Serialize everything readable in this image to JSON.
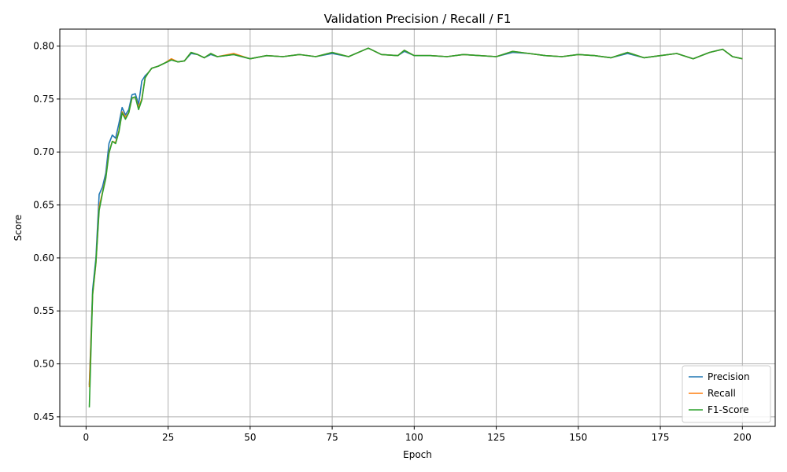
{
  "chart_data": {
    "type": "line",
    "title": "Validation Precision / Recall / F1",
    "xlabel": "Epoch",
    "ylabel": "Score",
    "xlim": [
      -8,
      210
    ],
    "ylim": [
      0.441,
      0.816
    ],
    "xticks": [
      0,
      25,
      50,
      75,
      100,
      125,
      150,
      175,
      200
    ],
    "yticks": [
      0.45,
      0.5,
      0.55,
      0.6,
      0.65,
      0.7,
      0.75,
      0.8
    ],
    "grid": true,
    "legend_position": "lower-right",
    "series": [
      {
        "name": "Precision",
        "color": "#1f77b4",
        "points": [
          [
            1,
            0.48
          ],
          [
            2,
            0.57
          ],
          [
            3,
            0.6
          ],
          [
            4,
            0.66
          ],
          [
            5,
            0.667
          ],
          [
            6,
            0.68
          ],
          [
            7,
            0.708
          ],
          [
            8,
            0.716
          ],
          [
            9,
            0.713
          ],
          [
            10,
            0.727
          ],
          [
            11,
            0.742
          ],
          [
            12,
            0.735
          ],
          [
            13,
            0.74
          ],
          [
            14,
            0.754
          ],
          [
            15,
            0.755
          ],
          [
            16,
            0.745
          ],
          [
            17,
            0.767
          ],
          [
            18,
            0.772
          ],
          [
            19,
            0.775
          ],
          [
            20,
            0.779
          ],
          [
            22,
            0.781
          ],
          [
            24,
            0.784
          ],
          [
            26,
            0.787
          ],
          [
            28,
            0.785
          ],
          [
            30,
            0.786
          ],
          [
            32,
            0.793
          ],
          [
            34,
            0.792
          ],
          [
            36,
            0.789
          ],
          [
            38,
            0.792
          ],
          [
            40,
            0.79
          ],
          [
            45,
            0.792
          ],
          [
            50,
            0.788
          ],
          [
            55,
            0.791
          ],
          [
            60,
            0.79
          ],
          [
            65,
            0.792
          ],
          [
            70,
            0.79
          ],
          [
            75,
            0.793
          ],
          [
            80,
            0.79
          ],
          [
            86,
            0.798
          ],
          [
            90,
            0.792
          ],
          [
            95,
            0.791
          ],
          [
            97,
            0.795
          ],
          [
            100,
            0.791
          ],
          [
            105,
            0.791
          ],
          [
            110,
            0.79
          ],
          [
            115,
            0.792
          ],
          [
            120,
            0.791
          ],
          [
            125,
            0.79
          ],
          [
            130,
            0.794
          ],
          [
            135,
            0.793
          ],
          [
            140,
            0.791
          ],
          [
            145,
            0.79
          ],
          [
            150,
            0.792
          ],
          [
            155,
            0.791
          ],
          [
            160,
            0.789
          ],
          [
            165,
            0.793
          ],
          [
            170,
            0.789
          ],
          [
            175,
            0.791
          ],
          [
            180,
            0.793
          ],
          [
            185,
            0.788
          ],
          [
            190,
            0.794
          ],
          [
            194,
            0.797
          ],
          [
            197,
            0.79
          ],
          [
            200,
            0.788
          ]
        ]
      },
      {
        "name": "Recall",
        "color": "#ff7f0e",
        "points": [
          [
            1,
            0.478
          ],
          [
            2,
            0.565
          ],
          [
            3,
            0.595
          ],
          [
            4,
            0.648
          ],
          [
            5,
            0.662
          ],
          [
            6,
            0.676
          ],
          [
            7,
            0.7
          ],
          [
            8,
            0.71
          ],
          [
            9,
            0.709
          ],
          [
            10,
            0.72
          ],
          [
            11,
            0.738
          ],
          [
            12,
            0.733
          ],
          [
            13,
            0.737
          ],
          [
            14,
            0.751
          ],
          [
            15,
            0.752
          ],
          [
            16,
            0.742
          ],
          [
            17,
            0.75
          ],
          [
            18,
            0.77
          ],
          [
            19,
            0.775
          ],
          [
            20,
            0.779
          ],
          [
            22,
            0.781
          ],
          [
            24,
            0.784
          ],
          [
            26,
            0.788
          ],
          [
            28,
            0.785
          ],
          [
            30,
            0.786
          ],
          [
            32,
            0.794
          ],
          [
            34,
            0.792
          ],
          [
            36,
            0.789
          ],
          [
            38,
            0.793
          ],
          [
            40,
            0.79
          ],
          [
            45,
            0.793
          ],
          [
            50,
            0.788
          ],
          [
            55,
            0.791
          ],
          [
            60,
            0.79
          ],
          [
            65,
            0.792
          ],
          [
            70,
            0.79
          ],
          [
            75,
            0.794
          ],
          [
            80,
            0.79
          ],
          [
            86,
            0.798
          ],
          [
            90,
            0.792
          ],
          [
            95,
            0.791
          ],
          [
            97,
            0.796
          ],
          [
            100,
            0.791
          ],
          [
            105,
            0.791
          ],
          [
            110,
            0.79
          ],
          [
            115,
            0.792
          ],
          [
            120,
            0.791
          ],
          [
            125,
            0.79
          ],
          [
            130,
            0.795
          ],
          [
            135,
            0.793
          ],
          [
            140,
            0.791
          ],
          [
            145,
            0.79
          ],
          [
            150,
            0.792
          ],
          [
            155,
            0.791
          ],
          [
            160,
            0.789
          ],
          [
            165,
            0.794
          ],
          [
            170,
            0.789
          ],
          [
            175,
            0.791
          ],
          [
            180,
            0.793
          ],
          [
            185,
            0.788
          ],
          [
            190,
            0.794
          ],
          [
            194,
            0.797
          ],
          [
            197,
            0.79
          ],
          [
            200,
            0.788
          ]
        ]
      },
      {
        "name": "F1-Score",
        "color": "#2ca02c",
        "points": [
          [
            1,
            0.459
          ],
          [
            2,
            0.566
          ],
          [
            3,
            0.596
          ],
          [
            4,
            0.645
          ],
          [
            5,
            0.661
          ],
          [
            6,
            0.675
          ],
          [
            7,
            0.699
          ],
          [
            8,
            0.71
          ],
          [
            9,
            0.708
          ],
          [
            10,
            0.719
          ],
          [
            11,
            0.737
          ],
          [
            12,
            0.731
          ],
          [
            13,
            0.737
          ],
          [
            14,
            0.751
          ],
          [
            15,
            0.752
          ],
          [
            16,
            0.74
          ],
          [
            17,
            0.749
          ],
          [
            18,
            0.77
          ],
          [
            19,
            0.775
          ],
          [
            20,
            0.779
          ],
          [
            22,
            0.781
          ],
          [
            24,
            0.784
          ],
          [
            26,
            0.787
          ],
          [
            28,
            0.785
          ],
          [
            30,
            0.786
          ],
          [
            32,
            0.794
          ],
          [
            34,
            0.792
          ],
          [
            36,
            0.789
          ],
          [
            38,
            0.793
          ],
          [
            40,
            0.79
          ],
          [
            45,
            0.792
          ],
          [
            50,
            0.788
          ],
          [
            55,
            0.791
          ],
          [
            60,
            0.79
          ],
          [
            65,
            0.792
          ],
          [
            70,
            0.79
          ],
          [
            75,
            0.794
          ],
          [
            80,
            0.79
          ],
          [
            86,
            0.798
          ],
          [
            90,
            0.792
          ],
          [
            95,
            0.791
          ],
          [
            97,
            0.796
          ],
          [
            100,
            0.791
          ],
          [
            105,
            0.791
          ],
          [
            110,
            0.79
          ],
          [
            115,
            0.792
          ],
          [
            120,
            0.791
          ],
          [
            125,
            0.79
          ],
          [
            130,
            0.795
          ],
          [
            135,
            0.793
          ],
          [
            140,
            0.791
          ],
          [
            145,
            0.79
          ],
          [
            150,
            0.792
          ],
          [
            155,
            0.791
          ],
          [
            160,
            0.789
          ],
          [
            165,
            0.794
          ],
          [
            170,
            0.789
          ],
          [
            175,
            0.791
          ],
          [
            180,
            0.793
          ],
          [
            185,
            0.788
          ],
          [
            190,
            0.794
          ],
          [
            194,
            0.797
          ],
          [
            197,
            0.79
          ],
          [
            200,
            0.788
          ]
        ]
      }
    ]
  }
}
